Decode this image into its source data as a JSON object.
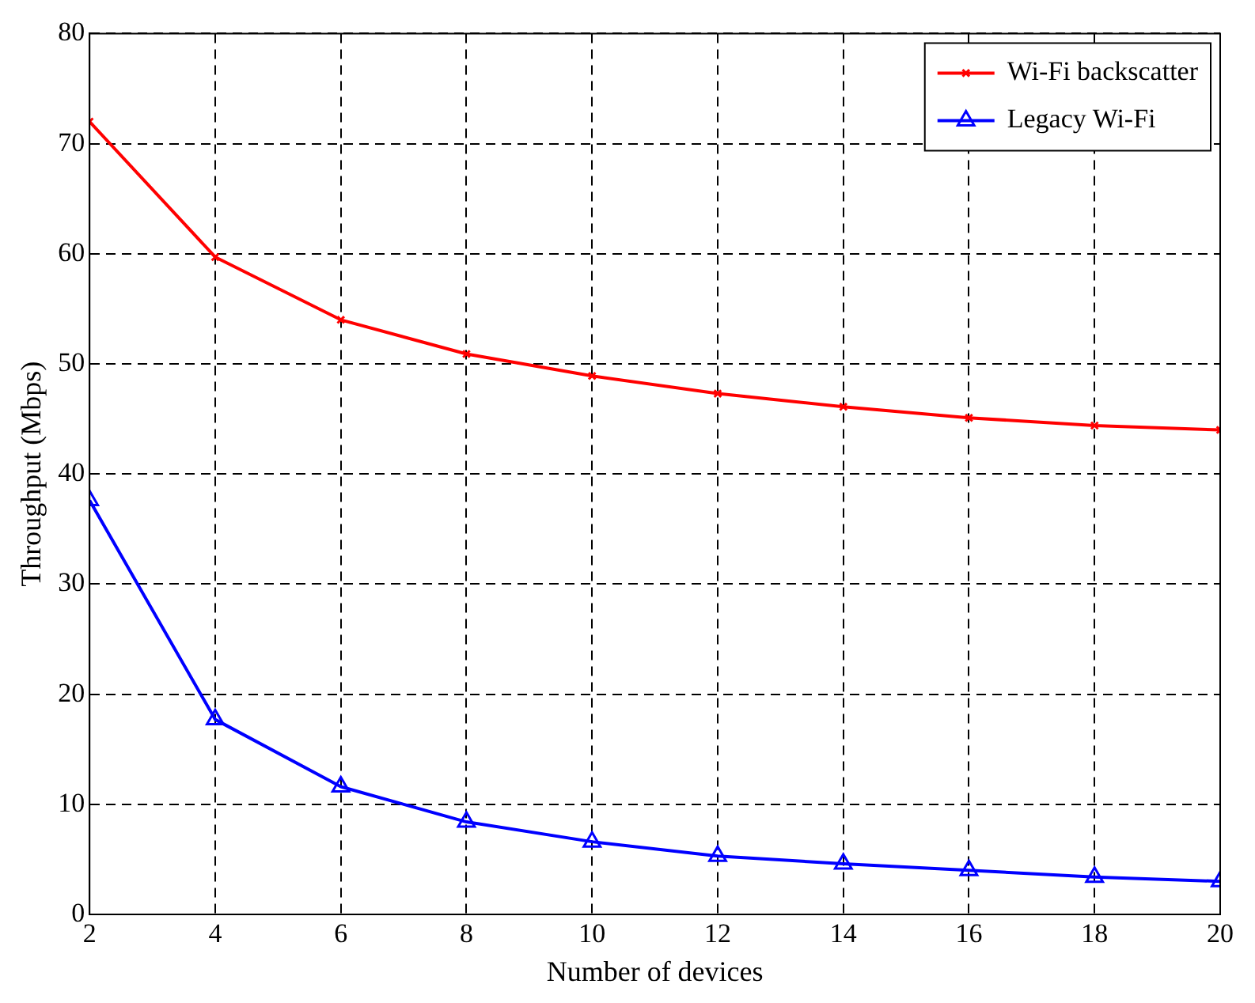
{
  "chart_data": {
    "type": "line",
    "xlabel": "Number of devices",
    "ylabel": "Throughput (Mbps)",
    "x": [
      2,
      4,
      6,
      8,
      10,
      12,
      14,
      16,
      18,
      20
    ],
    "series": [
      {
        "name": "Wi-Fi backscatter",
        "color": "#ff0000",
        "marker": "cross",
        "values": [
          72,
          59.7,
          54,
          50.9,
          48.9,
          47.3,
          46.1,
          45.1,
          44.4,
          44
        ]
      },
      {
        "name": "Legacy Wi-Fi",
        "color": "#0000ff",
        "marker": "triangle",
        "values": [
          37.6,
          17.7,
          11.6,
          8.4,
          6.6,
          5.3,
          4.6,
          4,
          3.4,
          3
        ]
      }
    ],
    "xlim": [
      2,
      20
    ],
    "xticks": [
      2,
      4,
      6,
      8,
      10,
      12,
      14,
      16,
      18,
      20
    ],
    "ylim": [
      0,
      80
    ],
    "yticks": [
      0,
      10,
      20,
      30,
      40,
      50,
      60,
      70,
      80
    ],
    "grid": true,
    "legend": "top right",
    "line_style": "solid"
  }
}
